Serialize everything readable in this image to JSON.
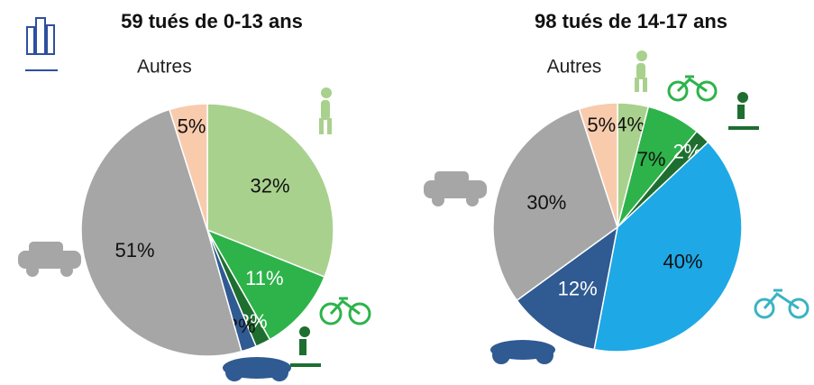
{
  "chart_data": [
    {
      "type": "pie",
      "title": "59 tués de 0-13 ans",
      "categories": [
        null,
        null,
        null,
        null,
        null,
        "Autres"
      ],
      "values": [
        32,
        11,
        2,
        2,
        51,
        5
      ],
      "value_labels": [
        "32%",
        "11%",
        "2%",
        "2%",
        "51%",
        "5%"
      ],
      "colors": [
        "#a9d18e",
        "#2db34a",
        "#1e6e30",
        "#2f5a92",
        "#a6a6a6",
        "#f8cbad"
      ],
      "label_colors": [
        "#111",
        "#fff",
        "#fff",
        "#111",
        "#111",
        "#111"
      ]
    },
    {
      "type": "pie",
      "title": "98 tués de 14-17 ans",
      "categories": [
        null,
        null,
        null,
        null,
        null,
        null,
        "Autres"
      ],
      "values": [
        4,
        7,
        2,
        40,
        12,
        30,
        5
      ],
      "value_labels": [
        "4%",
        "7%",
        "2%",
        "40%",
        "12%",
        "30%",
        "5%"
      ],
      "colors": [
        "#a9d18e",
        "#2db34a",
        "#1e6e30",
        "#1ea8e6",
        "#2f5a92",
        "#a6a6a6",
        "#f8cbad"
      ],
      "label_colors": [
        "#111",
        "#111",
        "#fff",
        "#111",
        "#fff",
        "#111",
        "#111"
      ]
    }
  ]
}
